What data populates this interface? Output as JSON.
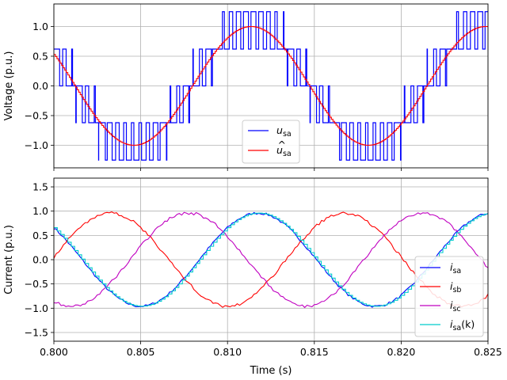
{
  "chart_data": [
    {
      "type": "line",
      "ylabel": "Voltage (p.u.)",
      "xlabel": "",
      "xlim": [
        0.8,
        0.825
      ],
      "ylim": [
        -1.38,
        1.38
      ],
      "xticks": [
        0.8,
        0.805,
        0.81,
        0.815,
        0.82,
        0.825
      ],
      "yticks": [
        -1.0,
        -0.5,
        0.0,
        0.5,
        1.0
      ],
      "ytick_labels": [
        "−1.0",
        "−0.5",
        "0.0",
        "0.5",
        "1.0"
      ],
      "grid": true,
      "legend_position": "lower-center",
      "series": [
        {
          "name_main": "u",
          "name_sub": "sa",
          "hat": false,
          "color": "#0000ff",
          "kind": "pwm",
          "amplitude": 1.0,
          "period": 0.0135,
          "phase_zero": 0.80795,
          "switching_period": 0.000435
        },
        {
          "name_main": "u",
          "name_sub": "sa",
          "hat": true,
          "color": "#ff0000",
          "kind": "sine",
          "amplitude": 1.0,
          "period": 0.0135,
          "phase_zero": 0.80795
        }
      ]
    },
    {
      "type": "line",
      "ylabel": "Current (p.u.)",
      "xlabel": "Time (s)",
      "xlim": [
        0.8,
        0.825
      ],
      "ylim": [
        -1.68,
        1.68
      ],
      "xticks": [
        0.8,
        0.805,
        0.81,
        0.815,
        0.82,
        0.825
      ],
      "xtick_labels": [
        "0.800",
        "0.805",
        "0.810",
        "0.815",
        "0.820",
        "0.825"
      ],
      "yticks": [
        -1.5,
        -1.0,
        -0.5,
        0.0,
        0.5,
        1.0,
        1.5
      ],
      "ytick_labels": [
        "−1.5",
        "−1.0",
        "−0.5",
        "0.0",
        "0.5",
        "1.0",
        "1.5"
      ],
      "grid": true,
      "legend_position": "lower-right",
      "series": [
        {
          "name_main": "i",
          "name_sub": "sa",
          "name_suffix": "",
          "color": "#0000ff",
          "amplitude": 0.96,
          "period": 0.0135,
          "peak_time": 0.81175,
          "ripple": 0.025
        },
        {
          "name_main": "i",
          "name_sub": "sb",
          "name_suffix": "",
          "color": "#ff0000",
          "amplitude": 0.96,
          "period": 0.0135,
          "peak_time": 0.80325,
          "ripple": 0.03
        },
        {
          "name_main": "i",
          "name_sub": "sc",
          "name_suffix": "",
          "color": "#c000c0",
          "amplitude": 0.96,
          "period": 0.0135,
          "peak_time": 0.80775,
          "ripple": 0.03
        },
        {
          "name_main": "i",
          "name_sub": "sa",
          "name_suffix": "(k)",
          "color": "#00cccc",
          "amplitude": 0.96,
          "period": 0.0135,
          "peak_time": 0.81175,
          "sample_time": 0.0002
        }
      ]
    }
  ]
}
